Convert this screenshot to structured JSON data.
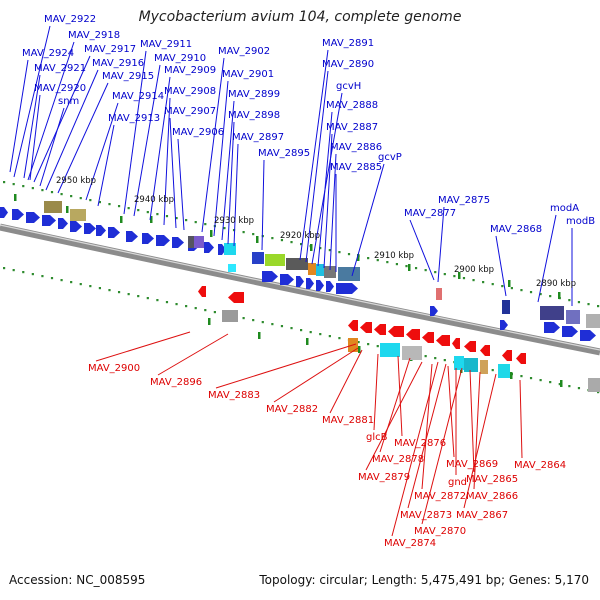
{
  "title": "Mycobacterium avium 104, complete genome",
  "footer": {
    "accession": "Accession: NC_008595",
    "summary": "Topology: circular; Length: 5,475,491 bp; Genes: 5,170"
  },
  "colors": {
    "top_strand_label": "#0000cc",
    "bottom_strand_label": "#dd0000",
    "backbone": "#8c8c8c",
    "tick_dot": "#2e8b2e"
  },
  "ruler_labels": [
    "2950 kbp",
    "2940 kbp",
    "2930 kbp",
    "2920 kbp",
    "2910 kbp",
    "2900 kbp",
    "2890 kbp"
  ],
  "top_gene_labels": [
    "MAV_2922",
    "MAV_2918",
    "MAV_2924",
    "MAV_2917",
    "MAV_2921",
    "MAV_2916",
    "MAV_2915",
    "MAV_2920",
    "snm",
    "MAV_2914",
    "MAV_2913",
    "MAV_2911",
    "MAV_2910",
    "MAV_2909",
    "MAV_2908",
    "MAV_2907",
    "MAV_2906",
    "MAV_2902",
    "MAV_2901",
    "MAV_2899",
    "MAV_2898",
    "MAV_2897",
    "MAV_2895",
    "MAV_2891",
    "MAV_2890",
    "gcvH",
    "MAV_2888",
    "MAV_2887",
    "MAV_2886",
    "MAV_2885",
    "gcvP",
    "MAV_2877",
    "MAV_2875",
    "MAV_2868",
    "modA",
    "modB"
  ],
  "bottom_gene_labels": [
    "MAV_2900",
    "MAV_2896",
    "MAV_2883",
    "MAV_2882",
    "MAV_2881",
    "glcB",
    "MAV_2876",
    "MAV_2878",
    "MAV_2879",
    "MAV_2869",
    "gnd",
    "MAV_2864",
    "MAV_2865",
    "MAV_2872",
    "MAV_2866",
    "MAV_2873",
    "MAV_2867",
    "MAV_2870",
    "MAV_2874"
  ]
}
